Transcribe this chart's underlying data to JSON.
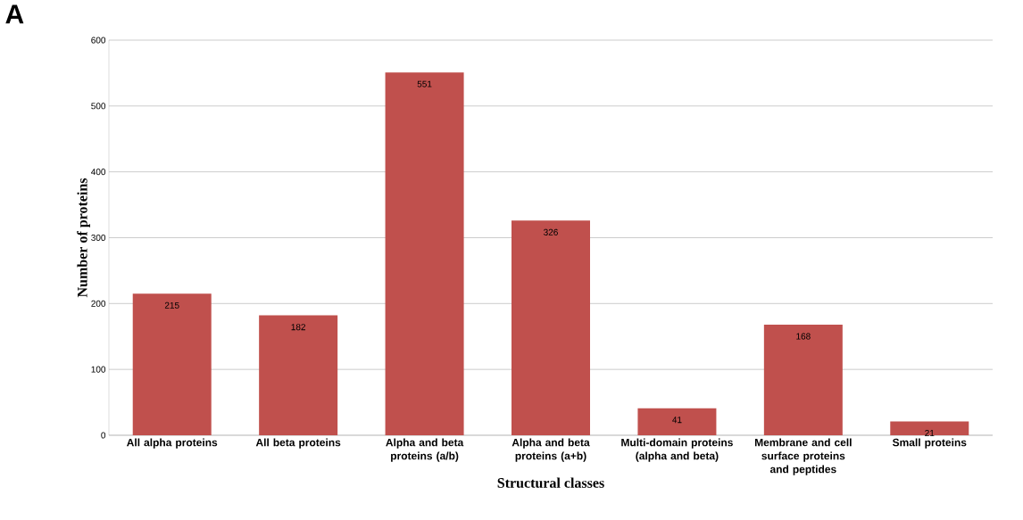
{
  "chart_data": {
    "type": "bar",
    "annotations": [
      "A"
    ],
    "xlabel": "Structural classes",
    "ylabel": "Number of proteins",
    "categories": [
      "All alpha proteins",
      "All beta proteins",
      "Alpha and beta proteins (a/b)",
      "Alpha and beta proteins (a+b)",
      "Multi-domain proteins (alpha and beta)",
      "Membrane and cell surface proteins and peptides",
      "Small proteins"
    ],
    "values": [
      215,
      182,
      551,
      326,
      41,
      168,
      21
    ],
    "color": "#c0504d",
    "data_labels": true,
    "ylim": [
      0,
      600
    ],
    "yticks": [
      0,
      100,
      200,
      300,
      400,
      500,
      600
    ],
    "grid": "y"
  }
}
